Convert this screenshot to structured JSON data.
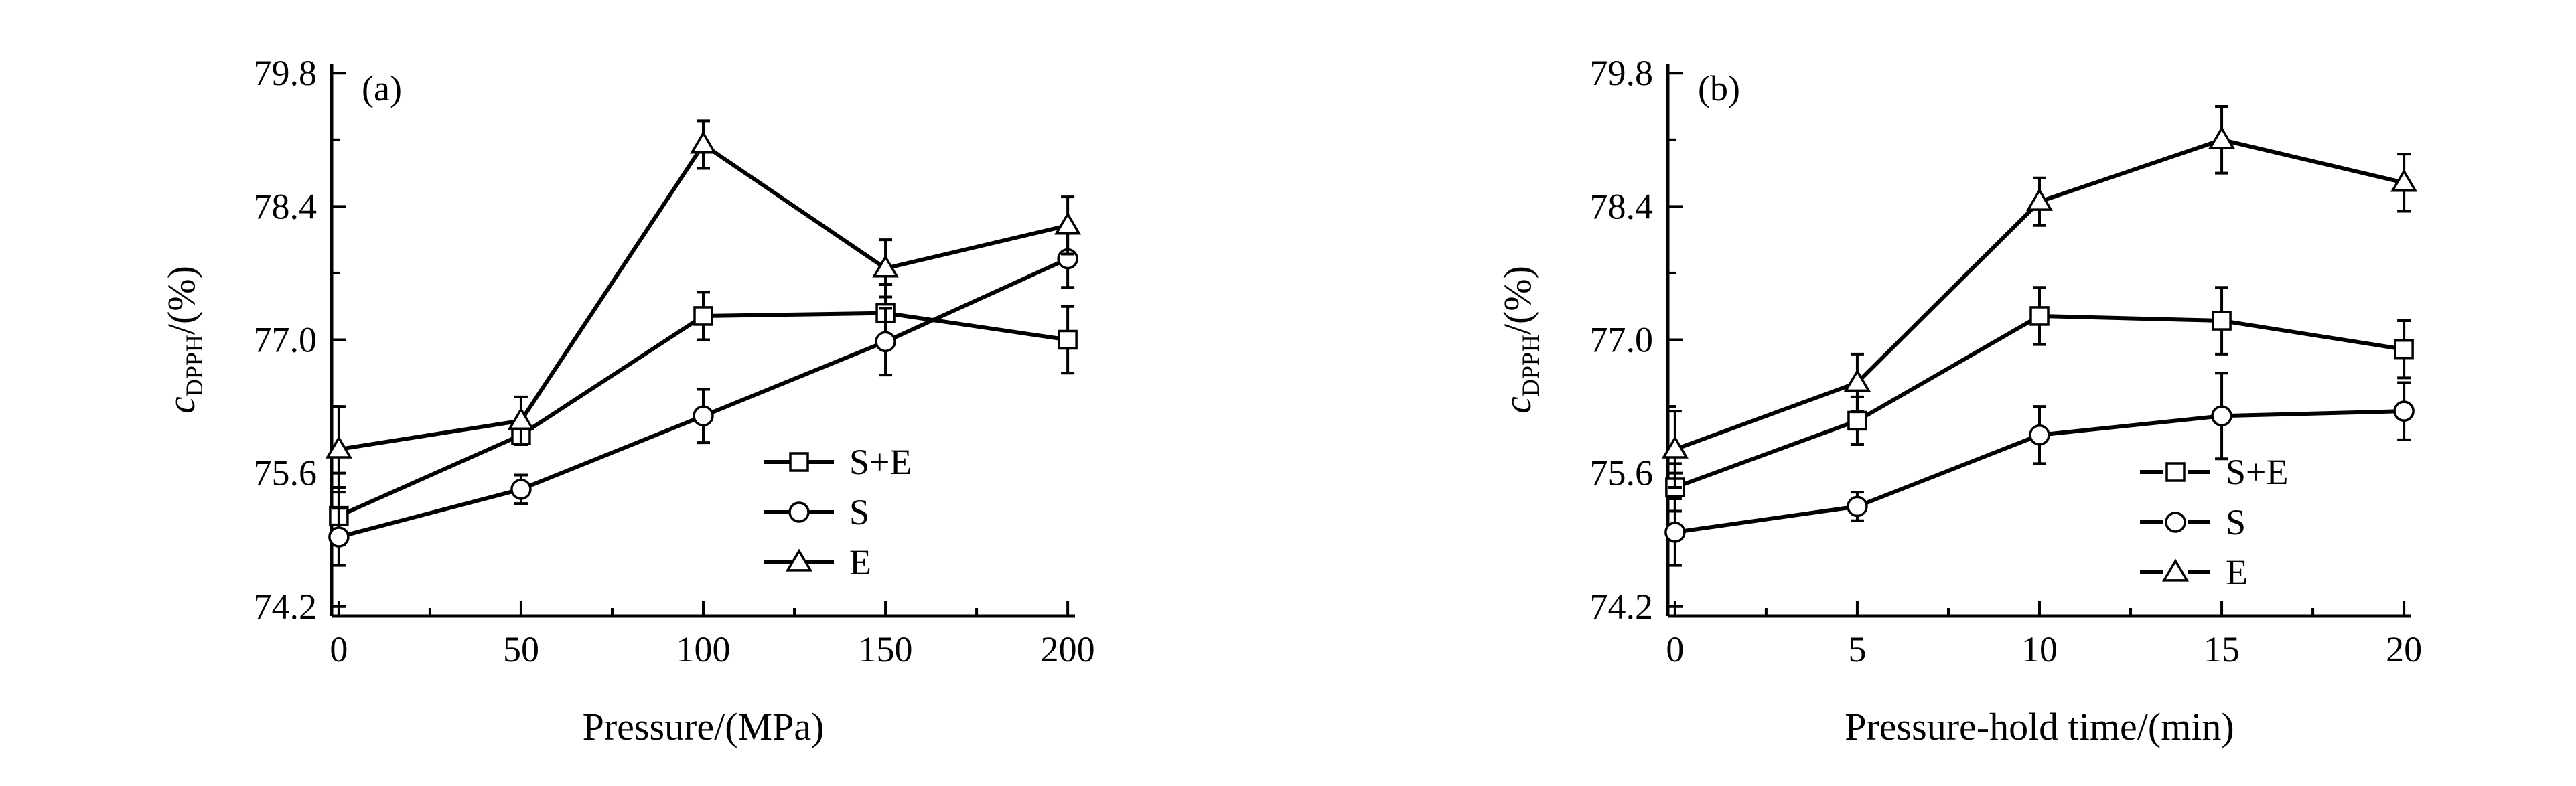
{
  "chart_data": [
    {
      "type": "line",
      "panel_label": "(a)",
      "xlabel": "Pressure/(MPa)",
      "ylabel_main": "c",
      "ylabel_sub": "DPPH",
      "ylabel_tail": "/(%)",
      "x": [
        0,
        50,
        100,
        150,
        200
      ],
      "xticks": [
        "0",
        "50",
        "100",
        "150",
        "200"
      ],
      "xlim": [
        -2,
        202
      ],
      "yticks": [
        "74.2",
        "75.6",
        "77.0",
        "78.4",
        "79.8"
      ],
      "ylim": [
        74.1,
        79.9
      ],
      "legend_position": "lower-right",
      "legend_style": "line",
      "series": [
        {
          "name": "S+E",
          "marker": "square",
          "values": [
            75.15,
            76.0,
            77.25,
            77.28,
            77.0
          ],
          "errors": [
            0.3,
            0.1,
            0.25,
            0.3,
            0.35
          ]
        },
        {
          "name": "S",
          "marker": "circle",
          "values": [
            74.93,
            75.43,
            76.2,
            76.98,
            77.85
          ],
          "errors": [
            0.3,
            0.15,
            0.28,
            0.35,
            0.3
          ]
        },
        {
          "name": "E",
          "marker": "triangle",
          "values": [
            75.85,
            76.15,
            79.05,
            77.75,
            78.2
          ],
          "errors": [
            0.45,
            0.25,
            0.25,
            0.3,
            0.3
          ]
        }
      ]
    },
    {
      "type": "line",
      "panel_label": "(b)",
      "xlabel": "Pressure-hold time/(min)",
      "ylabel_main": "c",
      "ylabel_sub": "DPPH",
      "ylabel_tail": "/(%)",
      "x": [
        0,
        5,
        10,
        15,
        20
      ],
      "xticks": [
        "0",
        "5",
        "10",
        "15",
        "20"
      ],
      "xlim": [
        -0.2,
        20.2
      ],
      "yticks": [
        "74.2",
        "75.6",
        "77.0",
        "78.4",
        "79.8"
      ],
      "ylim": [
        74.1,
        79.9
      ],
      "legend_position": "lower-right",
      "legend_style": "dash",
      "series": [
        {
          "name": "S+E",
          "marker": "square",
          "values": [
            75.45,
            76.15,
            77.25,
            77.2,
            76.9
          ],
          "errors": [
            0.25,
            0.25,
            0.3,
            0.35,
            0.3
          ]
        },
        {
          "name": "S",
          "marker": "circle",
          "values": [
            74.98,
            75.25,
            76.0,
            76.2,
            76.25
          ],
          "errors": [
            0.35,
            0.15,
            0.3,
            0.45,
            0.3
          ]
        },
        {
          "name": "E",
          "marker": "triangle",
          "values": [
            75.85,
            76.55,
            78.45,
            79.1,
            78.65
          ],
          "errors": [
            0.4,
            0.3,
            0.25,
            0.35,
            0.3
          ]
        }
      ]
    }
  ]
}
